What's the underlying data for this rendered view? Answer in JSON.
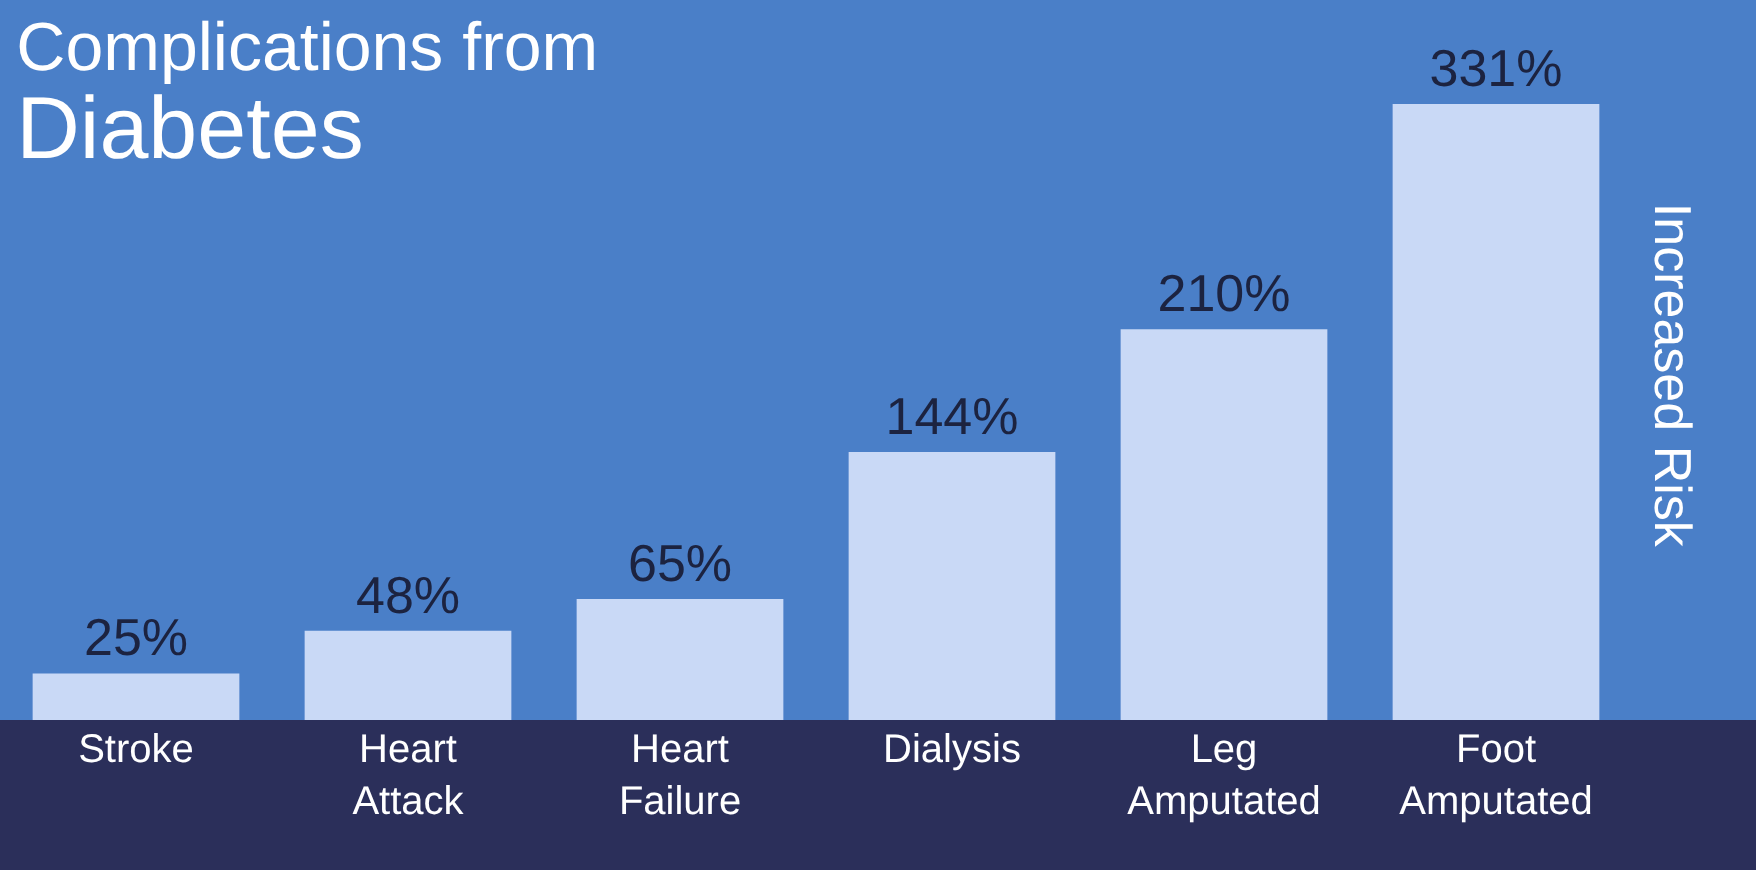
{
  "chart_data": {
    "type": "bar",
    "title": "Complications from",
    "subtitle": "Diabetes",
    "ylabel": "Increased Risk",
    "categories": [
      "Stroke",
      "Heart Attack",
      "Heart Failure",
      "Dialysis",
      "Leg Amputated",
      "Foot Amputated"
    ],
    "values": [
      25,
      48,
      65,
      144,
      210,
      331
    ],
    "value_labels": [
      "25%",
      "48%",
      "65%",
      "144%",
      "210%",
      "331%"
    ],
    "color": "#c9d9f6",
    "grid": false
  }
}
